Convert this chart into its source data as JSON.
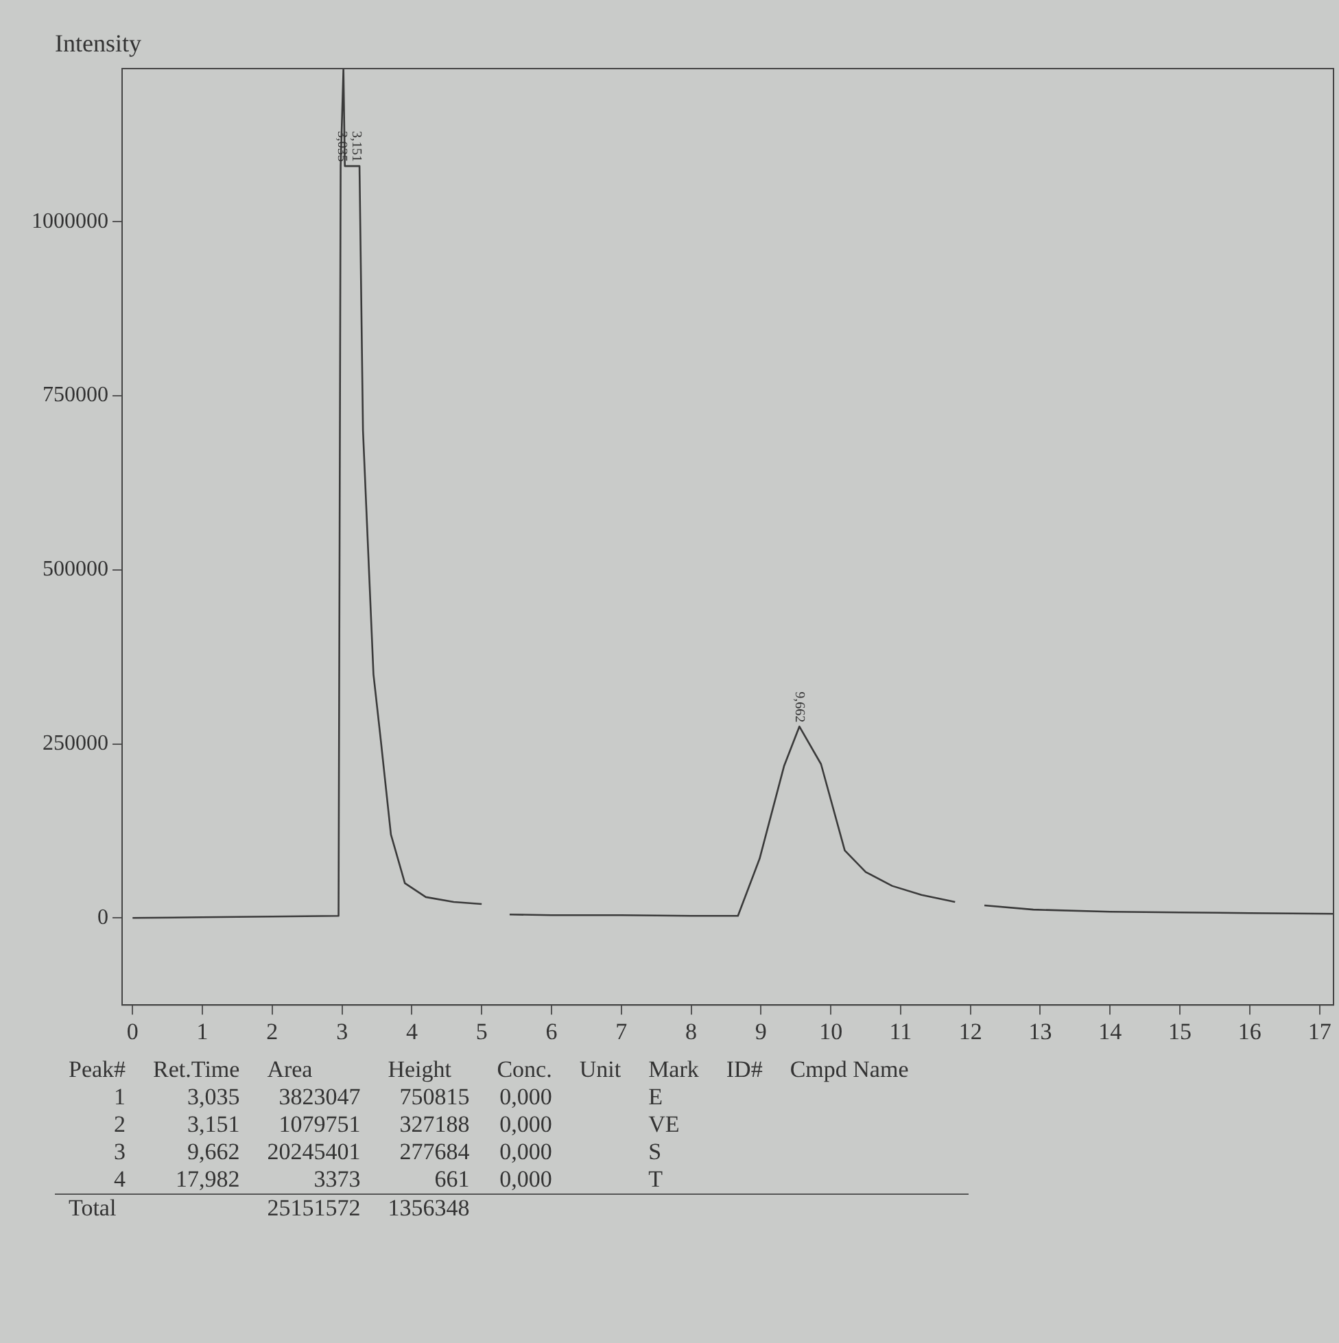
{
  "chart_data": {
    "type": "line",
    "ylabel": "Intensity",
    "x": [
      0,
      1,
      2,
      2.95,
      2.98,
      3.02,
      3.04,
      3.25,
      3.3,
      3.45,
      3.55,
      3.7,
      3.9,
      4.2,
      4.6,
      5.0,
      5.2,
      5.4,
      6,
      7,
      8,
      8.67,
      8.98,
      9.33,
      9.55,
      9.86,
      10.2,
      10.5,
      10.88,
      11.3,
      11.78,
      12.05,
      12.2,
      12.9,
      14,
      15,
      16,
      17.2
    ],
    "series": [
      {
        "color": "#3a3a3a",
        "values": [
          0,
          1000,
          2000,
          3000,
          1080000,
          1220000,
          1080000,
          1080000,
          700000,
          350000,
          260000,
          120000,
          50000,
          30000,
          23000,
          20000,
          null,
          5000,
          4000,
          4000,
          3000,
          3000,
          85000,
          218000,
          275000,
          221000,
          97000,
          66000,
          46000,
          33000,
          23000,
          null,
          18000,
          12000,
          9000,
          8000,
          7000,
          6000
        ]
      }
    ],
    "xlim": [
      -0.15,
      17.2
    ],
    "ylim": [
      -125000,
      1220000
    ],
    "xticks": [
      0,
      1,
      2,
      3,
      4,
      5,
      6,
      7,
      8,
      9,
      10,
      11,
      12,
      13,
      14,
      15,
      16,
      17
    ],
    "yticks": [
      0,
      250000,
      500000,
      750000,
      1000000
    ],
    "grid": false,
    "legend": false,
    "marker": "none",
    "line_style": "solid",
    "annotations": [
      {
        "text": "3,035",
        "x": 3.0,
        "y": 1080000
      },
      {
        "text": "3,151",
        "x": 3.2,
        "y": 1080000
      },
      {
        "text": "9,662",
        "x": 9.55,
        "y": 275000
      },
      "Peak#\tRet.Time\tArea\tHeight\tConc.\tUnit\tMark\tID#\tCmpd Name",
      "1\t3,035\t3823047\t750815\t0,000\t\tE\t\t",
      "2\t3,151\t1079751\t327188\t0,000\t\tVE\t\t",
      "3\t9,662\t20245401\t277684\t0,000\t\tS\t\t",
      "4\t17,982\t3373\t661\t0,000\t\tT\t\t",
      "Total\t\t25151572\t1356348\t\t\t\t\t"
    ]
  }
}
